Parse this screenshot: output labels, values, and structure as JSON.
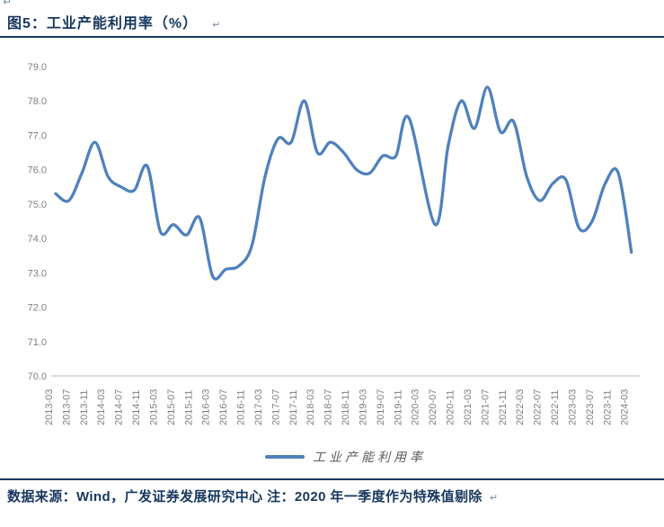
{
  "page": {
    "top_mark": "↵",
    "title": "图5：工业产能利用率（%）",
    "title_mark": "↵",
    "footer_text": "数据来源：Wind，广发证券发展研究中心  注：2020 年一季度作为特殊值剔除",
    "footer_mark": "↵"
  },
  "colors": {
    "heading_navy": "#17375E",
    "line_blue": "#4F81BD",
    "tick_gray": "#7F7F7F",
    "axis_gray": "#C6C6C6",
    "legend_gray": "#595959"
  },
  "chart_data": {
    "type": "line",
    "title": "图5：工业产能利用率（%）",
    "xlabel": "",
    "ylabel": "",
    "ylim": [
      70.0,
      79.0
    ],
    "ytick_step": 1.0,
    "ytick_labels": [
      "79.0",
      "78.0",
      "77.0",
      "76.0",
      "75.0",
      "74.0",
      "73.0",
      "72.0",
      "71.0",
      "70.0"
    ],
    "xtick_labels": [
      "2013-03",
      "2013-07",
      "2013-11",
      "2014-03",
      "2014-07",
      "2014-11",
      "2015-03",
      "2015-07",
      "2015-11",
      "2016-03",
      "2016-07",
      "2016-11",
      "2017-03",
      "2017-07",
      "2017-11",
      "2018-03",
      "2018-07",
      "2018-11",
      "2019-03",
      "2019-07",
      "2019-11",
      "2020-03",
      "2020-07",
      "2020-11",
      "2021-03",
      "2021-07",
      "2021-11",
      "2022-03",
      "2022-07",
      "2022-11",
      "2023-03",
      "2023-07",
      "2023-11",
      "2024-03"
    ],
    "grid": false,
    "smooth": true,
    "legend_position": "bottom",
    "excluded_points": [
      "2020-03"
    ],
    "series": [
      {
        "name": "工业产能利用率",
        "color": "#4F81BD",
        "x": [
          "2013-03",
          "2013-06",
          "2013-09",
          "2013-12",
          "2014-03",
          "2014-06",
          "2014-09",
          "2014-12",
          "2015-03",
          "2015-06",
          "2015-09",
          "2015-12",
          "2016-03",
          "2016-06",
          "2016-09",
          "2016-12",
          "2017-03",
          "2017-06",
          "2017-09",
          "2017-12",
          "2018-03",
          "2018-06",
          "2018-09",
          "2018-12",
          "2019-03",
          "2019-06",
          "2019-09",
          "2019-12",
          "2020-03",
          "2020-06",
          "2020-09",
          "2020-12",
          "2021-03",
          "2021-06",
          "2021-09",
          "2021-12",
          "2022-03",
          "2022-06",
          "2022-09",
          "2022-12",
          "2023-03",
          "2023-06",
          "2023-09",
          "2023-12",
          "2024-03"
        ],
        "values": [
          75.3,
          75.1,
          75.9,
          76.8,
          75.8,
          75.5,
          75.4,
          76.1,
          74.2,
          74.4,
          74.1,
          74.6,
          72.9,
          73.1,
          73.2,
          73.8,
          75.8,
          76.9,
          76.8,
          78.0,
          76.5,
          76.8,
          76.5,
          76.0,
          75.9,
          76.4,
          76.4,
          77.5,
          null,
          74.4,
          76.7,
          78.0,
          77.2,
          78.4,
          77.1,
          77.4,
          75.8,
          75.1,
          75.6,
          75.7,
          74.3,
          74.5,
          75.6,
          75.9,
          73.6
        ]
      }
    ]
  }
}
